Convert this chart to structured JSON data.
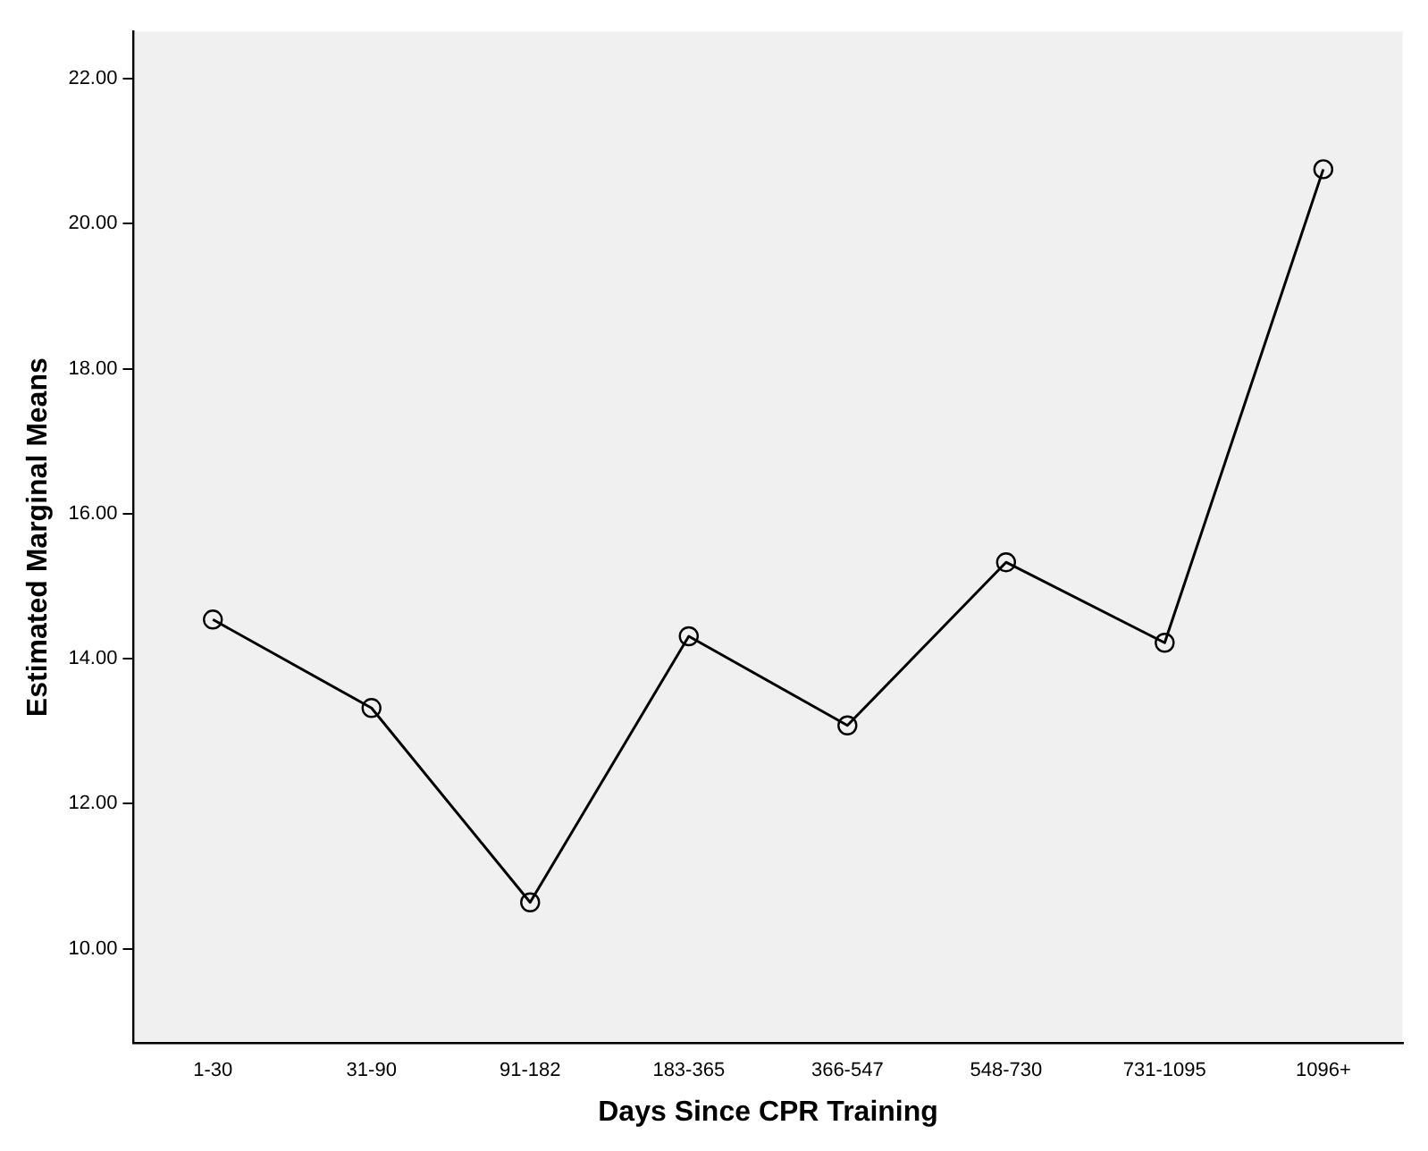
{
  "chart_data": {
    "type": "line",
    "xlabel": "Days Since CPR Training",
    "ylabel": "Estimated Marginal Means",
    "categories": [
      "1-30",
      "31-90",
      "91-182",
      "183-365",
      "366-547",
      "548-730",
      "731-1095",
      "1096+"
    ],
    "series": [
      {
        "color": "#000000",
        "values": [
          14.54,
          13.32,
          10.64,
          14.31,
          13.08,
          15.33,
          14.22,
          20.75
        ]
      }
    ],
    "ylim": [
      8.7,
      22.65
    ],
    "yticks": [
      {
        "value": 10,
        "label": "10.00"
      },
      {
        "value": 12,
        "label": "12.00"
      },
      {
        "value": 14,
        "label": "14.00"
      },
      {
        "value": 16,
        "label": "16.00"
      },
      {
        "value": 18,
        "label": "18.00"
      },
      {
        "value": 20,
        "label": "20.00"
      },
      {
        "value": 22,
        "label": "22.00"
      }
    ],
    "grid": false,
    "legend": false,
    "marker": "circle",
    "line_style": "solid"
  }
}
